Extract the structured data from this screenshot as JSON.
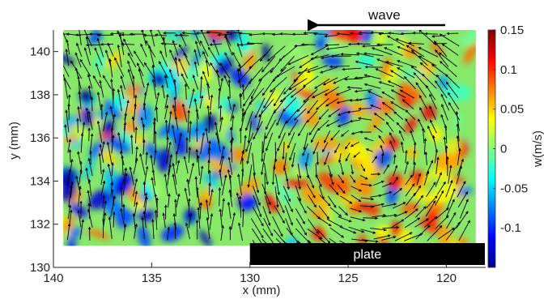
{
  "chart_data": {
    "type": "heatmap",
    "subtype": "vector-field-over-colormap",
    "xlabel": "x (mm)",
    "ylabel": "y (mm)",
    "x_reversed": true,
    "xlim": [
      140,
      118
    ],
    "ylim": [
      130,
      141
    ],
    "xticks": [
      140,
      135,
      130,
      125,
      120
    ],
    "yticks": [
      130,
      132,
      134,
      136,
      138,
      140
    ],
    "data_extent": {
      "x": [
        139.5,
        118.5
      ],
      "y": [
        131,
        141
      ]
    },
    "colorbar": {
      "label": "w(m/s)",
      "range": [
        -0.15,
        0.15
      ],
      "ticks": [
        {
          "value": 0.15,
          "label": "0.15"
        },
        {
          "value": 0.1,
          "label": "0.1"
        },
        {
          "value": 0.05,
          "label": "0.05"
        },
        {
          "value": 0,
          "label": "0"
        },
        {
          "value": -0.05,
          "label": "-0.05"
        },
        {
          "value": -0.1,
          "label": "-0.1"
        }
      ],
      "colormap": "jet"
    },
    "flow_features": {
      "left_region": "mostly upward vectors, x from 139 to 129",
      "vortex_center": [
        124,
        135
      ],
      "vortex_rotation": "counterclockwise in the plot view"
    },
    "annotations": [
      {
        "text": "wave",
        "arrow_direction": "left"
      },
      {
        "text": "plate",
        "x_range": [
          130,
          118
        ],
        "y_range": [
          130,
          131
        ]
      }
    ]
  },
  "colors": {
    "background_field": "#88e86a",
    "plate": "#000000",
    "arrow": "#000000"
  }
}
